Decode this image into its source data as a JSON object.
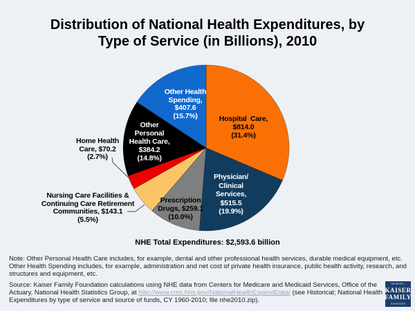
{
  "page": {
    "background": "#EDF0F4"
  },
  "header": {
    "title": "Distribution of National Health Expenditures, by\nType of Service (in Billions), 2010"
  },
  "chart_data": {
    "type": "pie",
    "title": "Distribution of National Health Expenditures, by Type of Service (in Billions), 2010",
    "year": "2010",
    "units": "billions USD",
    "direction": "clockwise",
    "start_angle_deg": 0,
    "total_label": "NHE Total Expenditures: $2,593.6 billion",
    "total_value_billions": 2593.6,
    "slices": [
      {
        "name": "Hospital Care",
        "value_billions": 814.0,
        "percent": 31.4,
        "color": "#FA7005",
        "label": "Hospital  Care,\n$814.0\n(31.4%)",
        "label_color": "#000000",
        "label_placement": "inside"
      },
      {
        "name": "Physician/Clinical Services",
        "value_billions": 515.5,
        "percent": 19.9,
        "color": "#113C5E",
        "label": "Physician/\nClinical\nServices,\n$515.5\n(19.9%)",
        "label_color": "#FFFFFF",
        "label_placement": "inside"
      },
      {
        "name": "Prescription Drugs",
        "value_billions": 259.1,
        "percent": 10.0,
        "color": "#7F7F7F",
        "label": "Prescription\nDrugs, $259.1\n(10.0%)",
        "label_color": "#000000",
        "label_placement": "inside"
      },
      {
        "name": "Nursing Care Facilities & Continuing Care Retirement Communities",
        "value_billions": 143.1,
        "percent": 5.5,
        "color": "#FBC469",
        "label": "Nursing Care Facilities &\nContinuing Care Retirement\nCommunities, $143.1\n(5.5%)",
        "label_color": "#000000",
        "label_placement": "outside"
      },
      {
        "name": "Home Health Care",
        "value_billions": 70.2,
        "percent": 2.7,
        "color": "#EE0000",
        "label": "Home Health\nCare, $70.2\n(2.7%)",
        "label_color": "#000000",
        "label_placement": "outside"
      },
      {
        "name": "Other Personal Health Care",
        "value_billions": 384.2,
        "percent": 14.8,
        "color": "#000000",
        "label": "Other\nPersonal\nHealth Care,\n$384.2\n(14.8%)",
        "label_color": "#FFFFFF",
        "label_placement": "inside"
      },
      {
        "name": "Other Health Spending",
        "value_billions": 407.6,
        "percent": 15.7,
        "color": "#1169CE",
        "label": "Other Health\nSpending,\n$407.6\n(15.7%)",
        "label_color": "#FFFFFF",
        "label_placement": "inside"
      }
    ]
  },
  "footnotes": {
    "note": "Note: Other Personal Health Care includes, for example, dental and other professional health services, durable medical equipment, etc. Other Health Spending includes, for example, administration and net cost of private health insurance, public health activity, research, and structures and equipment, etc.",
    "source_prefix": "Source: Kaiser Family Foundation calculations using NHE data from Centers for Medicare and Medicaid Services, Office of the Actuary, National Health Statistics Group, at ",
    "source_link": "http://www.cms.hhs.gov/NationalHealthExpendData/",
    "source_suffix": " (see Historical; National Health Expenditures by type of service and source of funds, CY 1960-2010; file nhe2010.zip)."
  },
  "logo": {
    "line1": "THE HENRY J.",
    "line2": "KAISER",
    "line3": "FAMILY",
    "line4": "FOUNDATION",
    "background": "#1C3D6B"
  }
}
